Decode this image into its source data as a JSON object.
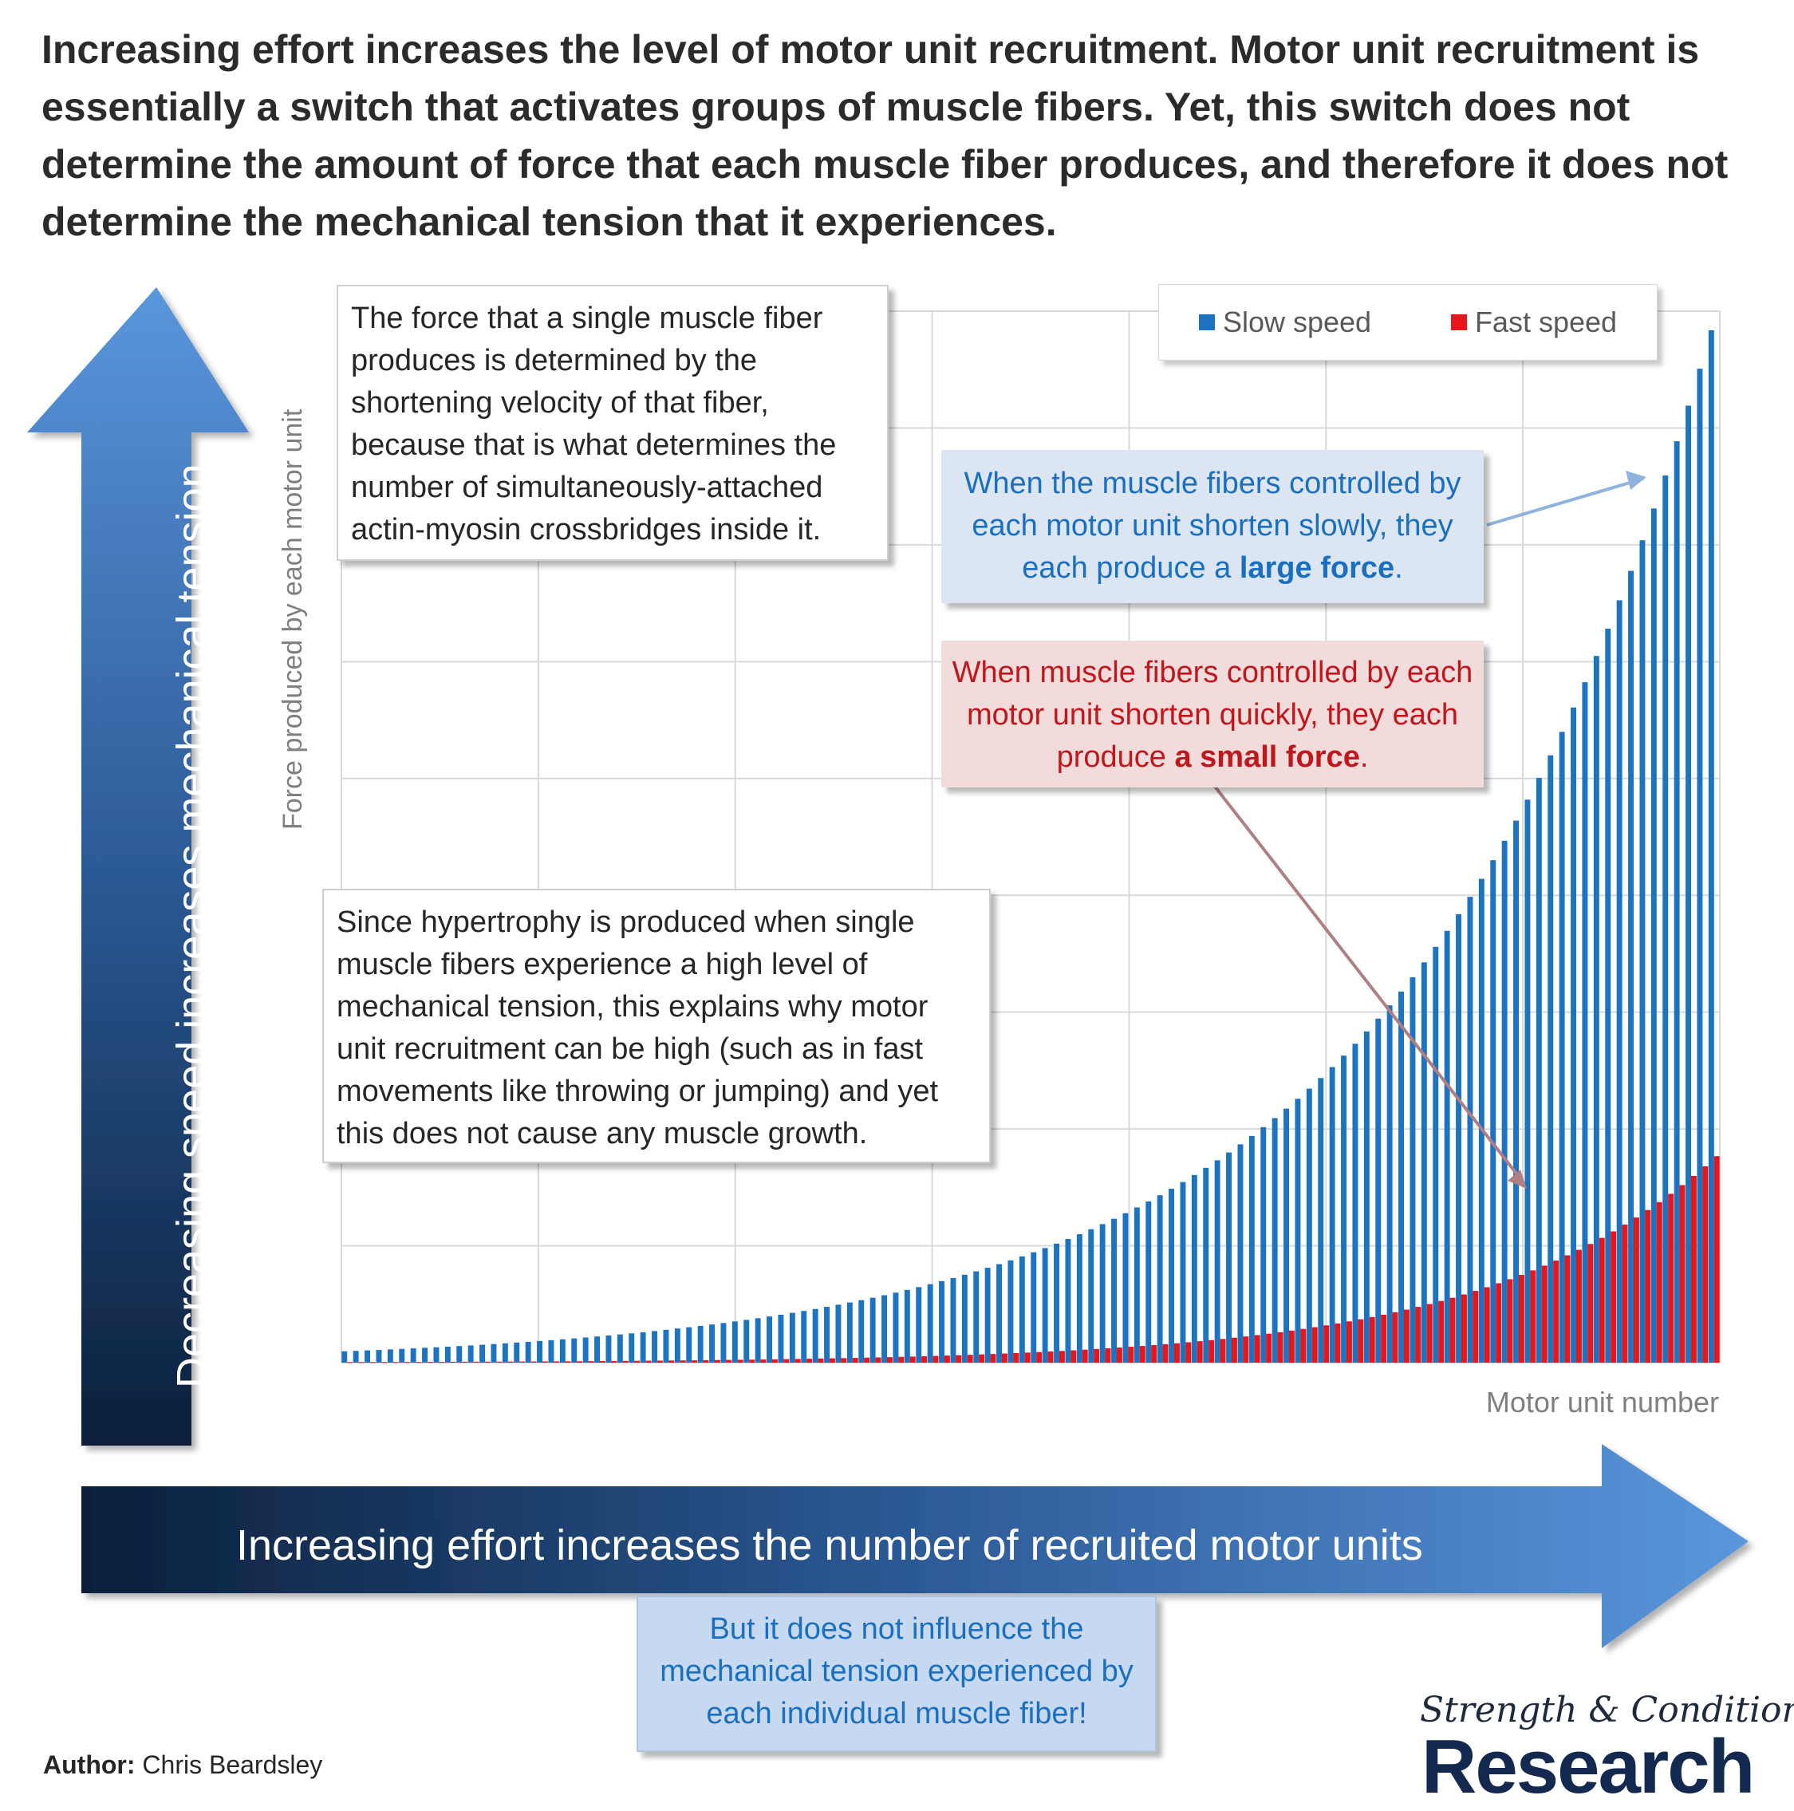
{
  "title": "Increasing effort increases the level of motor unit recruitment. Motor unit recruitment is essentially a switch that activates groups of muscle fibers. Yet, this switch does not determine the amount of force that each muscle fiber produces, and therefore it does not determine the mechanical tension that it experiences.",
  "callouts": {
    "force_velocity": "The force that a single muscle fiber produces is determined by the shortening velocity of that fiber, because that is what determines the number of simultaneously-attached actin-myosin crossbridges inside it.",
    "slow_prefix": "When the muscle fibers controlled by each motor unit shorten slowly, they each produce a ",
    "slow_bold": "large force",
    "slow_suffix": ".",
    "fast_prefix": "When muscle fibers controlled by each motor unit shorten quickly, they each produce ",
    "fast_bold": "a small force",
    "fast_suffix": ".",
    "hypertrophy": "Since hypertrophy is produced when single muscle fibers experience a high level of mechanical tension, this explains why motor unit recruitment can be high (such as in fast movements like throwing or jumping) and yet this does not cause any muscle growth.",
    "bottom": "But it does not influence the mechanical tension experienced by each individual muscle fiber!"
  },
  "arrows": {
    "vertical": "Decreasing speed increases mechanical tension",
    "horizontal": "Increasing effort increases the number of recruited motor units"
  },
  "author": {
    "label": "Author:",
    "name": " Chris Beardsley"
  },
  "logo": {
    "line1": "Strength & Conditioning",
    "line2": "Research"
  },
  "colors": {
    "slow": "#1b73c2",
    "fast": "#e8161b",
    "grid": "#d9d9d9",
    "arrow_dark": "#0b1f3a",
    "arrow_light": "#5a96dc"
  },
  "chart_data": {
    "type": "bar",
    "xlabel": "Motor unit number",
    "ylabel": "Force produced by each motor unit",
    "n_units": 120,
    "series": [
      {
        "name": "Slow speed",
        "color": "#1b73c2",
        "first_value": 0.011,
        "last_value": 1.0,
        "growth": "exponential"
      },
      {
        "name": "Fast speed",
        "color": "#e8161b",
        "first_value": 0.0005,
        "last_value": 0.2,
        "growth": "exponential"
      }
    ],
    "ylim": [
      0,
      1.0
    ],
    "grid": true,
    "legend_position": "top-right",
    "tick_labels_shown": false
  }
}
